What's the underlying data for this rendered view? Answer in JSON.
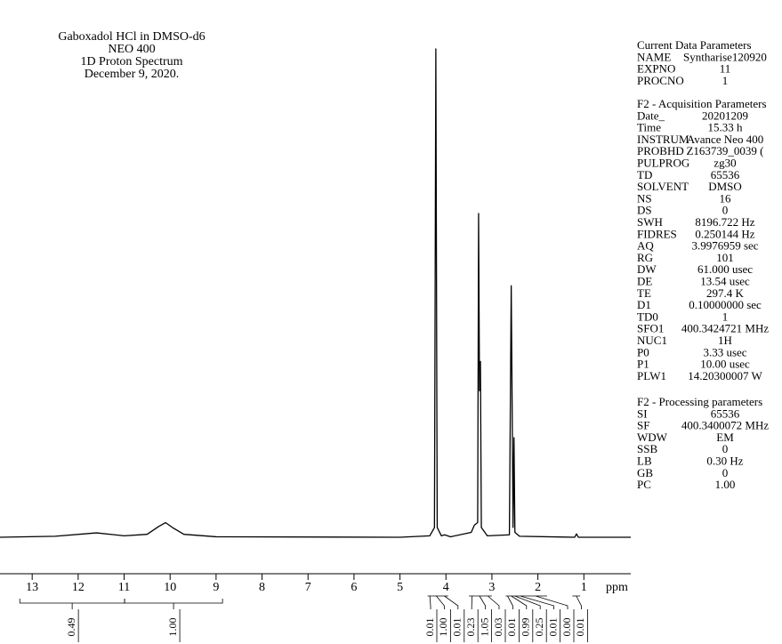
{
  "chart_data": {
    "type": "line",
    "title_lines": [
      "Gaboxadol HCl in DMSO-d6",
      "NEO 400",
      "1D Proton Spectrum",
      "December 9, 2020."
    ],
    "x_label": "ppm",
    "xlim": [
      13.7,
      -0.02
    ],
    "ylim": [
      0,
      100
    ],
    "xticks": [
      13,
      12,
      11,
      10,
      9,
      8,
      7,
      6,
      5,
      4,
      3,
      2,
      1
    ],
    "color": "#000000",
    "x": [
      13.7,
      12.5,
      11.6,
      11.0,
      10.5,
      10.25,
      10.1,
      9.95,
      9.7,
      9.0,
      5.0,
      4.35,
      4.25,
      4.22,
      4.19,
      4.1,
      4.03,
      3.9,
      3.45,
      3.38,
      3.31,
      3.29,
      3.27,
      3.25,
      3.23,
      3.1,
      2.62,
      2.58,
      2.56,
      2.54,
      2.52,
      2.5,
      2.4,
      1.2,
      1.16,
      1.12,
      -0.02
    ],
    "values": [
      0,
      0.2,
      0.9,
      0.3,
      0.6,
      2.2,
      3.0,
      2.0,
      0.6,
      0.1,
      0,
      0.3,
      2,
      100,
      2,
      0.3,
      0.5,
      0.1,
      1,
      2.5,
      3,
      66.3,
      30,
      36,
      2,
      0.3,
      0.5,
      51.5,
      27,
      2,
      20.4,
      1,
      0.2,
      0,
      0.7,
      0,
      0
    ],
    "integrals": [
      {
        "range": [
          13.27,
          10.99
        ],
        "label": "0.49"
      },
      {
        "range": [
          10.99,
          8.86
        ],
        "label": "1.00"
      },
      {
        "range": [
          4.4,
          4.3
        ],
        "label": "0.01"
      },
      {
        "range": [
          4.3,
          4.12
        ],
        "label": "1.00"
      },
      {
        "range": [
          4.12,
          3.95
        ],
        "label": "0.01"
      },
      {
        "range": [
          3.5,
          3.36
        ],
        "label": "0.23"
      },
      {
        "range": [
          3.36,
          3.18
        ],
        "label": "1.05"
      },
      {
        "range": [
          3.18,
          3.0
        ],
        "label": "0.03"
      },
      {
        "range": [
          2.7,
          2.62
        ],
        "label": "0.01"
      },
      {
        "range": [
          2.62,
          2.54
        ],
        "label": "0.99"
      },
      {
        "range": [
          2.54,
          2.47
        ],
        "label": "0.25"
      },
      {
        "range": [
          2.47,
          2.3
        ],
        "label": "0.01"
      },
      {
        "range": [
          2.3,
          1.8
        ],
        "label": "0.00"
      },
      {
        "range": [
          1.25,
          1.08
        ],
        "label": "0.01"
      }
    ]
  },
  "parameters": [
    {
      "header": "Current Data Parameters",
      "rows": [
        [
          "NAME",
          "Syntharise120920"
        ],
        [
          "EXPNO",
          "11"
        ],
        [
          "PROCNO",
          "1"
        ]
      ]
    },
    {
      "header": "F2 - Acquisition Parameters",
      "rows": [
        [
          "Date_",
          "20201209"
        ],
        [
          "Time",
          "15.33 h"
        ],
        [
          "INSTRUM",
          "Avance Neo 400"
        ],
        [
          "PROBHD",
          "Z163739_0039 ("
        ],
        [
          "PULPROG",
          "zg30"
        ],
        [
          "TD",
          "65536"
        ],
        [
          "SOLVENT",
          "DMSO"
        ],
        [
          "NS",
          "16"
        ],
        [
          "DS",
          "0"
        ],
        [
          "SWH",
          "8196.722 Hz"
        ],
        [
          "FIDRES",
          "0.250144 Hz"
        ],
        [
          "AQ",
          "3.9976959 sec"
        ],
        [
          "RG",
          "101"
        ],
        [
          "DW",
          "61.000 usec"
        ],
        [
          "DE",
          "13.54 usec"
        ],
        [
          "TE",
          "297.4 K"
        ],
        [
          "D1",
          "0.10000000 sec"
        ],
        [
          "TD0",
          "1"
        ],
        [
          "SFO1",
          "400.3424721 MHz"
        ],
        [
          "NUC1",
          "1H"
        ],
        [
          "P0",
          "3.33 usec"
        ],
        [
          "P1",
          "10.00 usec"
        ],
        [
          "PLW1",
          "14.20300007 W"
        ]
      ]
    },
    {
      "header": "F2 - Processing parameters",
      "rows": [
        [
          "SI",
          "65536"
        ],
        [
          "SF",
          "400.3400072 MHz"
        ],
        [
          "WDW",
          "EM"
        ],
        [
          "SSB",
          "0"
        ],
        [
          "LB",
          "0.30 Hz"
        ],
        [
          "GB",
          "0"
        ],
        [
          "PC",
          "1.00"
        ]
      ]
    }
  ]
}
